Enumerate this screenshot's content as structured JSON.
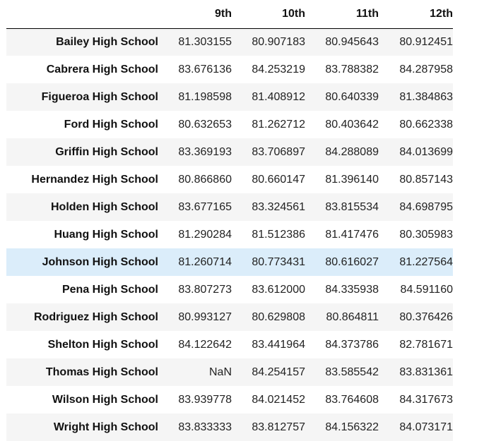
{
  "table": {
    "columns": [
      "9th",
      "10th",
      "11th",
      "12th"
    ],
    "rows": [
      {
        "school": "Bailey High School",
        "values": [
          "81.303155",
          "80.907183",
          "80.945643",
          "80.912451"
        ]
      },
      {
        "school": "Cabrera High School",
        "values": [
          "83.676136",
          "84.253219",
          "83.788382",
          "84.287958"
        ]
      },
      {
        "school": "Figueroa High School",
        "values": [
          "81.198598",
          "81.408912",
          "80.640339",
          "81.384863"
        ]
      },
      {
        "school": "Ford High School",
        "values": [
          "80.632653",
          "81.262712",
          "80.403642",
          "80.662338"
        ]
      },
      {
        "school": "Griffin High School",
        "values": [
          "83.369193",
          "83.706897",
          "84.288089",
          "84.013699"
        ]
      },
      {
        "school": "Hernandez High School",
        "values": [
          "80.866860",
          "80.660147",
          "81.396140",
          "80.857143"
        ]
      },
      {
        "school": "Holden High School",
        "values": [
          "83.677165",
          "83.324561",
          "83.815534",
          "84.698795"
        ]
      },
      {
        "school": "Huang High School",
        "values": [
          "81.290284",
          "81.512386",
          "81.417476",
          "80.305983"
        ]
      },
      {
        "school": "Johnson High School",
        "values": [
          "81.260714",
          "80.773431",
          "80.616027",
          "81.227564"
        ]
      },
      {
        "school": "Pena High School",
        "values": [
          "83.807273",
          "83.612000",
          "84.335938",
          "84.591160"
        ]
      },
      {
        "school": "Rodriguez High School",
        "values": [
          "80.993127",
          "80.629808",
          "80.864811",
          "80.376426"
        ]
      },
      {
        "school": "Shelton High School",
        "values": [
          "84.122642",
          "83.441964",
          "84.373786",
          "82.781671"
        ]
      },
      {
        "school": "Thomas High School",
        "values": [
          "NaN",
          "84.254157",
          "83.585542",
          "83.831361"
        ]
      },
      {
        "school": "Wilson High School",
        "values": [
          "83.939778",
          "84.021452",
          "83.764608",
          "84.317673"
        ]
      },
      {
        "school": "Wright High School",
        "values": [
          "83.833333",
          "83.812757",
          "84.156322",
          "84.073171"
        ]
      }
    ],
    "highlighted_row": 8,
    "colors": {
      "stripe": "#f5f5f5",
      "hover": "#dbedfa",
      "header_rule": "#000000"
    }
  }
}
